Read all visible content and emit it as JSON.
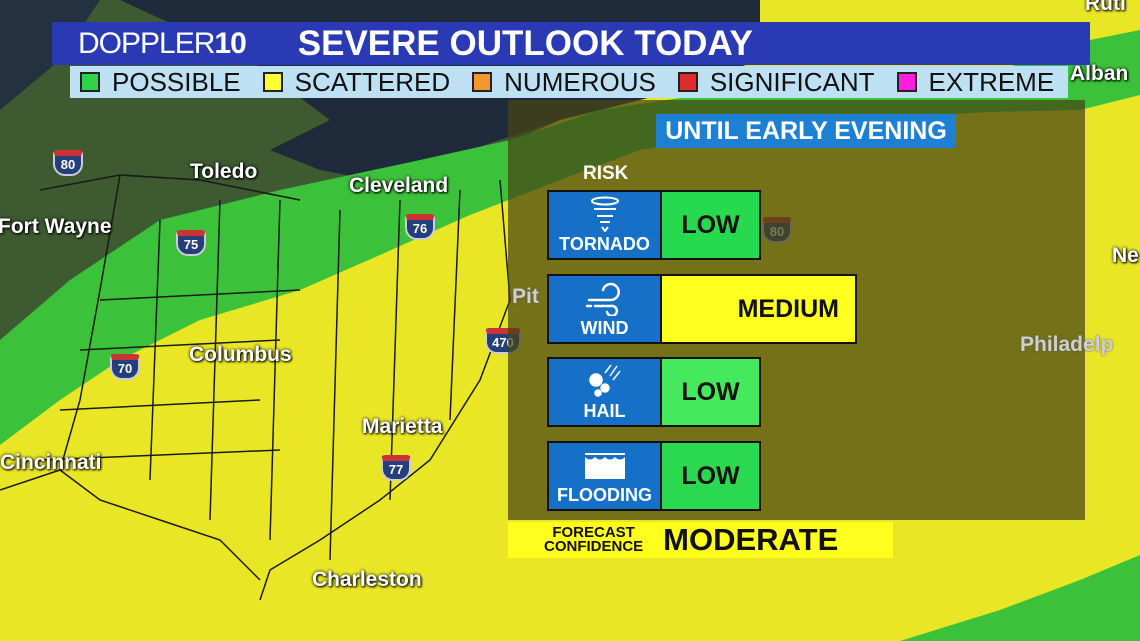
{
  "header": {
    "brand_text": "DOPPLER",
    "brand_number": "10",
    "title": "SEVERE OUTLOOK TODAY"
  },
  "legend": [
    {
      "label": "POSSIBLE",
      "color": "#2ed34a"
    },
    {
      "label": "SCATTERED",
      "color": "#ffff33"
    },
    {
      "label": "NUMEROUS",
      "color": "#f0982e"
    },
    {
      "label": "SIGNIFICANT",
      "color": "#e02a2a"
    },
    {
      "label": "EXTREME",
      "color": "#ff1ee0"
    }
  ],
  "panel": {
    "timeframe": "UNTIL EARLY EVENING",
    "risk_heading": "RISK",
    "risks": [
      {
        "hazard": "TORNADO",
        "icon": "tornado-icon",
        "level": "LOW",
        "color": "#27d94e"
      },
      {
        "hazard": "WIND",
        "icon": "wind-icon",
        "level": "MEDIUM",
        "color": "#ffff1e"
      },
      {
        "hazard": "HAIL",
        "icon": "hail-icon",
        "level": "LOW",
        "color": "#44ea5c"
      },
      {
        "hazard": "FLOODING",
        "icon": "flood-icon",
        "level": "LOW",
        "color": "#2ad94f"
      }
    ],
    "confidence_label_1": "FORECAST",
    "confidence_label_2": "CONFIDENCE",
    "confidence_value": "MODERATE"
  },
  "map": {
    "cities": [
      "Toledo",
      "Cleveland",
      "Fort Wayne",
      "Columbus",
      "Marietta",
      "Cincinnati",
      "Charleston",
      "Pit",
      "Philadelp",
      "Alban",
      "Ne",
      "Rutl"
    ],
    "interstates": [
      "80",
      "75",
      "76",
      "80",
      "70",
      "470",
      "77"
    ]
  }
}
